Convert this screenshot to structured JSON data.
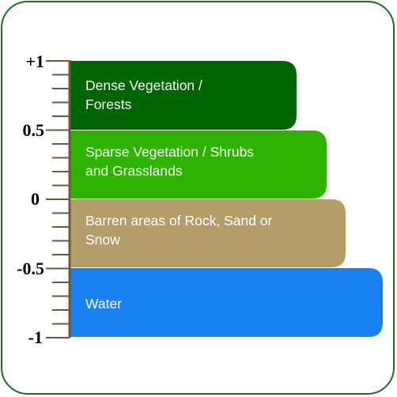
{
  "axis": {
    "labels": {
      "top": "+1",
      "half": "0.5",
      "zero": "0",
      "neg_half": "-0.5",
      "bottom": "-1"
    }
  },
  "bands": [
    {
      "id": "dense",
      "label": "Dense Vegetation /\nForests",
      "color": "#006400",
      "range": [
        0.5,
        1.0
      ]
    },
    {
      "id": "sparse",
      "label": "Sparse Vegetation / Shrubs\nand Grasslands",
      "color": "#2db300",
      "range": [
        0.0,
        0.5
      ]
    },
    {
      "id": "barren",
      "label": "Barren areas of Rock, Sand or\nSnow",
      "color": "#b59d6a",
      "range": [
        -0.5,
        0.0
      ]
    },
    {
      "id": "water",
      "label": "Water",
      "color": "#1a82f0",
      "range": [
        -1.0,
        -0.5
      ]
    }
  ]
}
